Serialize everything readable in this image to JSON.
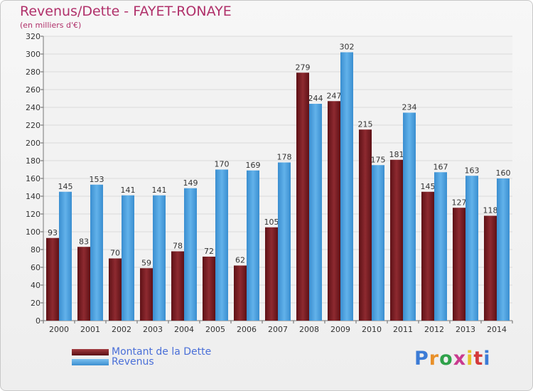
{
  "title": "Revenus/Dette - FAYET-RONAYE",
  "subtitle": "(en milliers d'€)",
  "logo": {
    "text": "Proxiti",
    "letter_colors": [
      "#3b7bd6",
      "#e8902a",
      "#2fa14a",
      "#c93a8f",
      "#e8c12a",
      "#d43a3a",
      "#3b7bd6"
    ]
  },
  "colors": {
    "dette": "#7a1f24",
    "revenus": "#4fa3e0",
    "axis_text": "#333333",
    "grid": "#d9d9d9"
  },
  "chart_data": {
    "type": "bar",
    "title": "Revenus/Dette - FAYET-RONAYE",
    "subtitle": "(en milliers d'€)",
    "categories": [
      "2000",
      "2001",
      "2002",
      "2003",
      "2004",
      "2005",
      "2006",
      "2007",
      "2008",
      "2009",
      "2010",
      "2011",
      "2012",
      "2013",
      "2014"
    ],
    "series": [
      {
        "name": "Montant de la Dette",
        "values": [
          93,
          83,
          70,
          59,
          78,
          72,
          62,
          105,
          279,
          247,
          215,
          181,
          145,
          127,
          118
        ]
      },
      {
        "name": "Revenus",
        "values": [
          145,
          153,
          141,
          141,
          149,
          170,
          169,
          178,
          244,
          302,
          175,
          234,
          167,
          163,
          160
        ]
      }
    ],
    "ylim": [
      0,
      320
    ],
    "yticks": [
      0,
      20,
      40,
      60,
      80,
      100,
      120,
      140,
      160,
      180,
      200,
      220,
      240,
      260,
      280,
      300,
      320
    ],
    "grid": true,
    "legend_position": "bottom-left"
  }
}
